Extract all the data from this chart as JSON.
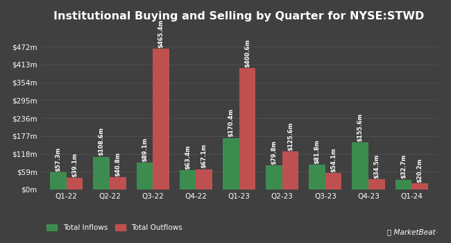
{
  "title": "Institutional Buying and Selling by Quarter for NYSE:STWD",
  "quarters": [
    "Q1-22",
    "Q2-22",
    "Q3-22",
    "Q4-22",
    "Q1-23",
    "Q2-23",
    "Q3-23",
    "Q4-23",
    "Q1-24"
  ],
  "inflows": [
    57.3,
    108.6,
    89.1,
    63.4,
    170.4,
    79.8,
    81.8,
    155.6,
    32.7
  ],
  "outflows": [
    39.1,
    40.8,
    465.4,
    67.1,
    400.6,
    125.6,
    54.1,
    34.5,
    20.2
  ],
  "inflow_labels": [
    "$57.3m",
    "$108.6m",
    "$89.1m",
    "$63.4m",
    "$170.4m",
    "$79.8m",
    "$81.8m",
    "$155.6m",
    "$32.7m"
  ],
  "outflow_labels": [
    "$39.1m",
    "$40.8m",
    "$465.4m",
    "$67.1m",
    "$400.6m",
    "$125.6m",
    "$54.1m",
    "$34.5m",
    "$20.2m"
  ],
  "inflow_color": "#3d8c4f",
  "outflow_color": "#bf5050",
  "background_color": "#404040",
  "grid_color": "#4f4f4f",
  "text_color": "#ffffff",
  "yticks": [
    0,
    59,
    118,
    177,
    236,
    295,
    354,
    413,
    472
  ],
  "ytick_labels": [
    "$0m",
    "$59m",
    "$118m",
    "$177m",
    "$236m",
    "$295m",
    "$354m",
    "$413m",
    "$472m"
  ],
  "ylim": [
    0,
    530
  ],
  "legend_inflow": "Total Inflows",
  "legend_outflow": "Total Outflows",
  "bar_width": 0.38,
  "title_fontsize": 11.5,
  "label_fontsize": 6.0,
  "tick_fontsize": 7.5,
  "legend_fontsize": 7.5
}
